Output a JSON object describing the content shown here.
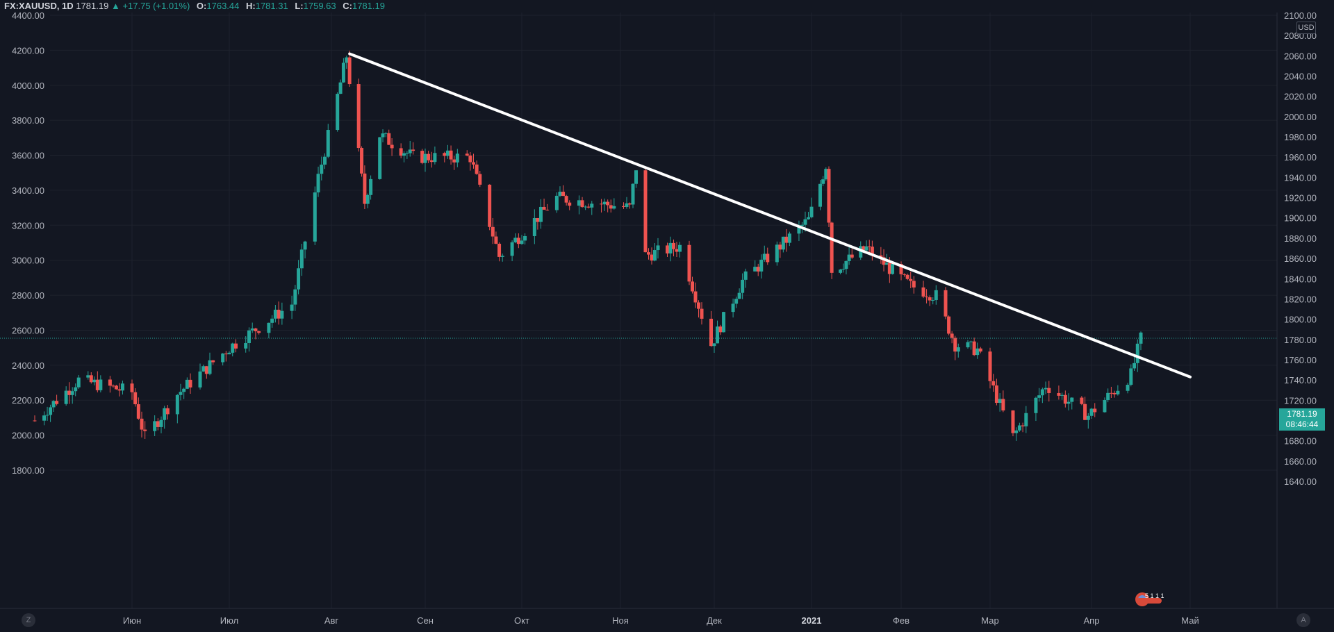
{
  "header": {
    "symbol": "FX:XAUUSD, 1D",
    "last": "1781.19",
    "change": "+17.75 (+1.01%)",
    "open_label": "O:",
    "open": "1763.44",
    "high_label": "H:",
    "high": "1781.31",
    "low_label": "L:",
    "low": "1759.63",
    "close_label": "C:",
    "close": "1781.19"
  },
  "price_tag": {
    "price": "1781.19",
    "countdown": "08:46:44"
  },
  "currency": "USD",
  "corner_left": "Z",
  "corner_right": "A",
  "events_badge": "5 1 1 1",
  "colors": {
    "up": "#26a69a",
    "down": "#ef5350",
    "background": "#131722",
    "grid": "#1f2330",
    "trendline": "#ffffff"
  },
  "chart_data": {
    "type": "candlestick",
    "left_axis": {
      "ticks": [
        "4400.00",
        "4200.00",
        "4000.00",
        "3800.00",
        "3600.00",
        "3400.00",
        "3200.00",
        "3000.00",
        "2800.00",
        "2600.00",
        "2400.00",
        "2200.00",
        "2000.00",
        "1800.00"
      ],
      "range": [
        1700,
        4400
      ]
    },
    "right_axis": {
      "ticks": [
        "2100.00",
        "2080.00",
        "2060.00",
        "2040.00",
        "2020.00",
        "2000.00",
        "1980.00",
        "1960.00",
        "1940.00",
        "1920.00",
        "1900.00",
        "1880.00",
        "1860.00",
        "1840.00",
        "1820.00",
        "1800.00",
        "1780.00",
        "1760.00",
        "1740.00",
        "1720.00",
        "1700.00",
        "1680.00",
        "1660.00",
        "1640.00"
      ],
      "range": [
        1630,
        2100
      ],
      "unit": "USD"
    },
    "time_labels": [
      "Июн",
      "Июл",
      "Авг",
      "Сен",
      "Окт",
      "Ноя",
      "Дек",
      "2021",
      "Фев",
      "Мар",
      "Апр",
      "Май"
    ],
    "current_price": 1781.19,
    "trendline": {
      "from": {
        "date": "2020-08-07",
        "price": 2062
      },
      "to": {
        "date": "2021-05-01",
        "price": 1743
      }
    },
    "keypoints": [
      {
        "date": "2020-05-01",
        "price": 1700
      },
      {
        "date": "2020-05-15",
        "price": 1740
      },
      {
        "date": "2020-06-01",
        "price": 1728
      },
      {
        "date": "2020-06-05",
        "price": 1683
      },
      {
        "date": "2020-06-15",
        "price": 1726
      },
      {
        "date": "2020-07-01",
        "price": 1772
      },
      {
        "date": "2020-07-20",
        "price": 1815
      },
      {
        "date": "2020-07-28",
        "price": 1940
      },
      {
        "date": "2020-08-06",
        "price": 2060
      },
      {
        "date": "2020-08-12",
        "price": 1915
      },
      {
        "date": "2020-08-17",
        "price": 1982
      },
      {
        "date": "2020-08-28",
        "price": 1960
      },
      {
        "date": "2020-09-15",
        "price": 1960
      },
      {
        "date": "2020-09-24",
        "price": 1862
      },
      {
        "date": "2020-10-12",
        "price": 1920
      },
      {
        "date": "2020-11-04",
        "price": 1910
      },
      {
        "date": "2020-11-06",
        "price": 1950
      },
      {
        "date": "2020-11-09",
        "price": 1863
      },
      {
        "date": "2020-11-20",
        "price": 1872
      },
      {
        "date": "2020-11-30",
        "price": 1775
      },
      {
        "date": "2020-12-10",
        "price": 1838
      },
      {
        "date": "2020-12-31",
        "price": 1898
      },
      {
        "date": "2021-01-06",
        "price": 1952
      },
      {
        "date": "2021-01-08",
        "price": 1848
      },
      {
        "date": "2021-01-20",
        "price": 1870
      },
      {
        "date": "2021-02-04",
        "price": 1833
      },
      {
        "date": "2021-02-12",
        "price": 1823
      },
      {
        "date": "2021-02-18",
        "price": 1775
      },
      {
        "date": "2021-02-25",
        "price": 1770
      },
      {
        "date": "2021-03-08",
        "price": 1684
      },
      {
        "date": "2021-03-18",
        "price": 1735
      },
      {
        "date": "2021-03-31",
        "price": 1705
      },
      {
        "date": "2021-04-13",
        "price": 1745
      },
      {
        "date": "2021-04-16",
        "price": 1781
      }
    ]
  }
}
